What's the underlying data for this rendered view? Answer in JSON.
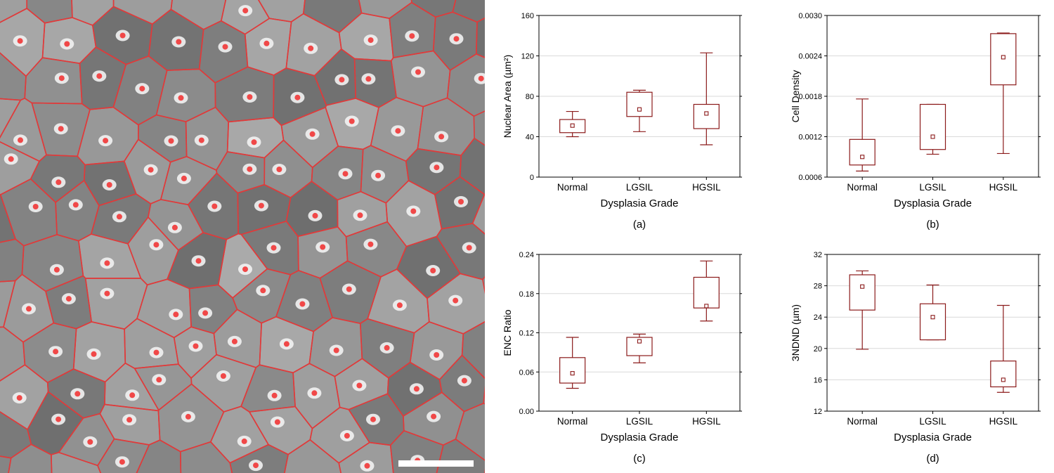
{
  "image": {
    "colors": {
      "tissue": "#8a8a8a",
      "cell_border": "#e03a3a",
      "nucleus": "#f2f2f2",
      "nucleus_marker": "#f04848",
      "scale_bar": "#ffffff"
    }
  },
  "colors": {
    "box": "#8b1a1a",
    "grid": "#d9d9d9",
    "axis": "#000000"
  },
  "chart_data": [
    {
      "type": "box",
      "panel_label": "(a)",
      "xlabel": "Dysplasia Grade",
      "ylabel": "Nuclear Area (µm²)",
      "ylim": [
        0,
        160
      ],
      "yticks": [
        "0",
        "40",
        "80",
        "120",
        "160"
      ],
      "categories": [
        "Normal",
        "LGSIL",
        "HGSIL"
      ],
      "boxes": [
        {
          "min": 40,
          "q1": 44,
          "median": 51,
          "q3": 57,
          "max": 65
        },
        {
          "min": 45,
          "q1": 60,
          "median": 67,
          "q3": 84,
          "max": 86
        },
        {
          "min": 32,
          "q1": 48,
          "median": 63,
          "q3": 72,
          "max": 123
        }
      ]
    },
    {
      "type": "box",
      "panel_label": "(b)",
      "xlabel": "Dysplasia Grade",
      "ylabel": "Cell Density",
      "ylim": [
        0.0006,
        0.003
      ],
      "yticks": [
        "0.0006",
        "0.0012",
        "0.0018",
        "0.0024",
        "0.0030"
      ],
      "categories": [
        "Normal",
        "LGSIL",
        "HGSIL"
      ],
      "boxes": [
        {
          "min": 0.00069,
          "q1": 0.00078,
          "median": 0.0009,
          "q3": 0.00116,
          "max": 0.00176
        },
        {
          "min": 0.00094,
          "q1": 0.00101,
          "median": 0.0012,
          "q3": 0.00168,
          "max": 0.00168
        },
        {
          "min": 0.00095,
          "q1": 0.00197,
          "median": 0.00238,
          "q3": 0.00273,
          "max": 0.00274
        }
      ]
    },
    {
      "type": "box",
      "panel_label": "(c)",
      "xlabel": "Dysplasia Grade",
      "ylabel": "ENC Ratio",
      "ylim": [
        0,
        0.24
      ],
      "yticks": [
        "0.00",
        "0.06",
        "0.12",
        "0.18",
        "0.24"
      ],
      "categories": [
        "Normal",
        "LGSIL",
        "HGSIL"
      ],
      "boxes": [
        {
          "min": 0.035,
          "q1": 0.043,
          "median": 0.058,
          "q3": 0.082,
          "max": 0.113
        },
        {
          "min": 0.074,
          "q1": 0.085,
          "median": 0.107,
          "q3": 0.113,
          "max": 0.118
        },
        {
          "min": 0.138,
          "q1": 0.158,
          "median": 0.161,
          "q3": 0.205,
          "max": 0.23
        }
      ]
    },
    {
      "type": "box",
      "panel_label": "(d)",
      "xlabel": "Dysplasia Grade",
      "ylabel": "3NDND (µm)",
      "ylim": [
        12,
        32
      ],
      "yticks": [
        "12",
        "16",
        "20",
        "24",
        "28",
        "32"
      ],
      "categories": [
        "Normal",
        "LGSIL",
        "HGSIL"
      ],
      "boxes": [
        {
          "min": 19.9,
          "q1": 24.9,
          "median": 27.9,
          "q3": 29.4,
          "max": 29.9
        },
        {
          "min": 21.1,
          "q1": 21.1,
          "median": 24.0,
          "q3": 25.7,
          "max": 28.1
        },
        {
          "min": 14.4,
          "q1": 15.1,
          "median": 16.0,
          "q3": 18.4,
          "max": 25.5
        }
      ]
    }
  ]
}
